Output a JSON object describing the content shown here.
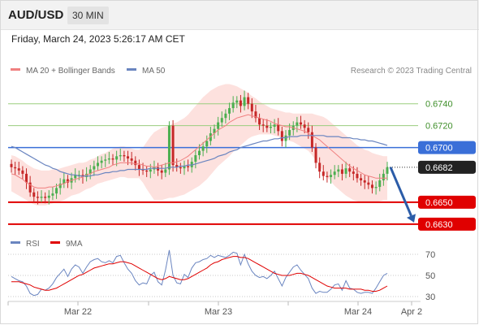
{
  "header": {
    "symbol": "AUD/USD",
    "timeframe": "30 MIN"
  },
  "timestamp": "Friday, March 24, 2023 5:26:17 AM CET",
  "legend": {
    "ma20": "MA 20 + Bollinger Bands",
    "ma50": "MA 50",
    "copyright": "Research © 2023 Trading Central"
  },
  "rsi_legend": {
    "rsi": "RSI",
    "ma9": "9MA"
  },
  "colors": {
    "bullish": "#4caf50",
    "bearish": "#c62828",
    "ma20": "#f08080",
    "ma50": "#6a85c0",
    "bollinger_fill": "#fde1de",
    "resistance": "#9acd7e",
    "pivot": "#3a6fd8",
    "support": "#e00000",
    "last_price": "#222222",
    "arrow": "#2b5ca8",
    "rsi_line": "#6a85c0",
    "rsi_ma": "#e00000"
  },
  "chart_data": [
    {
      "type": "candlestick",
      "title": "AUD/USD 30 MIN",
      "x_ticks": [
        "Mar 22",
        "Mar 23",
        "Mar 24",
        "Apr 2"
      ],
      "y_range": [
        0.6618,
        0.6768
      ],
      "horizontal_levels": [
        {
          "value": 0.674,
          "label": "0.6740",
          "kind": "resistance"
        },
        {
          "value": 0.672,
          "label": "0.6720",
          "kind": "resistance"
        },
        {
          "value": 0.67,
          "label": "0.6700",
          "kind": "pivot"
        },
        {
          "value": 0.6682,
          "label": "0.6682",
          "kind": "last"
        },
        {
          "value": 0.665,
          "label": "0.6650",
          "kind": "support"
        },
        {
          "value": 0.663,
          "label": "0.6630",
          "kind": "support"
        }
      ],
      "close": [
        0.6682,
        0.6681,
        0.6679,
        0.6676,
        0.6668,
        0.6659,
        0.6655,
        0.6654,
        0.6655,
        0.6654,
        0.6656,
        0.6658,
        0.6663,
        0.6667,
        0.6671,
        0.6668,
        0.6672,
        0.6675,
        0.6675,
        0.6673,
        0.6676,
        0.668,
        0.6683,
        0.6686,
        0.6688,
        0.6689,
        0.669,
        0.6689,
        0.6692,
        0.6693,
        0.6692,
        0.669,
        0.6688,
        0.6684,
        0.668,
        0.6679,
        0.6678,
        0.668,
        0.6682,
        0.6679,
        0.6677,
        0.668,
        0.672,
        0.6684,
        0.6682,
        0.6681,
        0.6683,
        0.6682,
        0.6687,
        0.6693,
        0.6697,
        0.6701,
        0.6706,
        0.6713,
        0.6717,
        0.6723,
        0.6727,
        0.6731,
        0.6736,
        0.6741,
        0.6743,
        0.6738,
        0.6746,
        0.674,
        0.6733,
        0.6727,
        0.6721,
        0.672,
        0.6718,
        0.6719,
        0.6721,
        0.6715,
        0.6706,
        0.6711,
        0.6716,
        0.672,
        0.6723,
        0.6721,
        0.6718,
        0.6714,
        0.67,
        0.6686,
        0.6678,
        0.6674,
        0.6673,
        0.6675,
        0.6678,
        0.668,
        0.6676,
        0.6681,
        0.6678,
        0.6676,
        0.6672,
        0.667,
        0.6668,
        0.6666,
        0.6663,
        0.6664,
        0.667,
        0.6676,
        0.6682
      ],
      "ma20": [
        0.6676,
        0.6675,
        0.6673,
        0.6671,
        0.6668,
        0.6666,
        0.6664,
        0.6663,
        0.6663,
        0.6663,
        0.6664,
        0.6664,
        0.6665,
        0.6666,
        0.6667,
        0.6669,
        0.667,
        0.6671,
        0.6672,
        0.6673,
        0.6675,
        0.6676,
        0.6678,
        0.6679,
        0.668,
        0.6681,
        0.6682,
        0.6684,
        0.6685,
        0.6686,
        0.6686,
        0.6686,
        0.6686,
        0.6685,
        0.6685,
        0.6684,
        0.6683,
        0.6683,
        0.6682,
        0.6683,
        0.6684,
        0.6685,
        0.6686,
        0.6686,
        0.6687,
        0.6688,
        0.669,
        0.6692,
        0.6695,
        0.6698,
        0.6701,
        0.6704,
        0.6707,
        0.671,
        0.6713,
        0.6716,
        0.6718,
        0.672,
        0.6723,
        0.6725,
        0.6727,
        0.6728,
        0.6729,
        0.673,
        0.6729,
        0.6728,
        0.6727,
        0.6726,
        0.6725,
        0.6724,
        0.6722,
        0.6721,
        0.672,
        0.6719,
        0.6719,
        0.6718,
        0.6717,
        0.6716,
        0.6715,
        0.6713,
        0.6711,
        0.6709,
        0.6707,
        0.6704,
        0.6701,
        0.6698,
        0.6695,
        0.6692,
        0.6689,
        0.6686,
        0.6683,
        0.6681,
        0.6679,
        0.6677,
        0.6675,
        0.6674,
        0.6673,
        0.6672,
        0.6672,
        0.6672,
        0.6672
      ],
      "bb_upper": [
        0.6693,
        0.6692,
        0.669,
        0.6688,
        0.6685,
        0.6683,
        0.6681,
        0.668,
        0.6679,
        0.6679,
        0.6679,
        0.668,
        0.668,
        0.6681,
        0.6682,
        0.6683,
        0.6684,
        0.6685,
        0.6686,
        0.6686,
        0.6687,
        0.6689,
        0.669,
        0.6692,
        0.6694,
        0.6695,
        0.6697,
        0.6699,
        0.67,
        0.6701,
        0.6701,
        0.67,
        0.6699,
        0.6698,
        0.6698,
        0.67,
        0.6705,
        0.671,
        0.6714,
        0.6716,
        0.6718,
        0.6719,
        0.672,
        0.6722,
        0.6723,
        0.6725,
        0.6727,
        0.673,
        0.6734,
        0.6738,
        0.6742,
        0.6746,
        0.6749,
        0.6752,
        0.6754,
        0.6756,
        0.6757,
        0.6758,
        0.6758,
        0.6757,
        0.6756,
        0.6754,
        0.6752,
        0.675,
        0.6747,
        0.6745,
        0.6742,
        0.674,
        0.6738,
        0.6736,
        0.6735,
        0.6734,
        0.6733,
        0.6732,
        0.6732,
        0.6731,
        0.6731,
        0.6731,
        0.6731,
        0.6731,
        0.6731,
        0.673,
        0.6729,
        0.6728,
        0.6726,
        0.6723,
        0.672,
        0.6717,
        0.6714,
        0.6711,
        0.6708,
        0.6705,
        0.6702,
        0.67,
        0.6698,
        0.6697,
        0.6695,
        0.6694,
        0.6693,
        0.6692,
        0.6692
      ],
      "bb_lower": [
        0.666,
        0.6658,
        0.6656,
        0.6654,
        0.6652,
        0.665,
        0.6648,
        0.6647,
        0.6647,
        0.6647,
        0.6648,
        0.6649,
        0.665,
        0.6651,
        0.6652,
        0.6654,
        0.6656,
        0.6657,
        0.6658,
        0.666,
        0.6662,
        0.6663,
        0.6665,
        0.6667,
        0.6668,
        0.6669,
        0.667,
        0.6671,
        0.6672,
        0.6673,
        0.6673,
        0.6672,
        0.6672,
        0.6672,
        0.6672,
        0.6668,
        0.6662,
        0.6657,
        0.6652,
        0.6652,
        0.6652,
        0.6653,
        0.6654,
        0.6654,
        0.6655,
        0.6656,
        0.6657,
        0.6659,
        0.6661,
        0.6663,
        0.6665,
        0.6668,
        0.6671,
        0.6675,
        0.6679,
        0.6683,
        0.6686,
        0.6689,
        0.6692,
        0.6696,
        0.6699,
        0.6702,
        0.6705,
        0.6708,
        0.671,
        0.6711,
        0.6712,
        0.6712,
        0.6712,
        0.6712,
        0.6711,
        0.671,
        0.6709,
        0.6708,
        0.6706,
        0.6705,
        0.6703,
        0.6701,
        0.6699,
        0.6697,
        0.6693,
        0.6688,
        0.6683,
        0.6678,
        0.6673,
        0.6669,
        0.6665,
        0.6662,
        0.6659,
        0.6656,
        0.6654,
        0.6652,
        0.6651,
        0.665,
        0.665,
        0.665,
        0.665,
        0.665,
        0.6651,
        0.6652,
        0.6652
      ],
      "ma50": [
        0.6701,
        0.67,
        0.6698,
        0.6696,
        0.6694,
        0.6692,
        0.669,
        0.6688,
        0.6686,
        0.6684,
        0.6683,
        0.6681,
        0.668,
        0.6678,
        0.6677,
        0.6676,
        0.6675,
        0.6675,
        0.6674,
        0.6674,
        0.6674,
        0.6674,
        0.6675,
        0.6675,
        0.6676,
        0.6677,
        0.6677,
        0.6678,
        0.6678,
        0.6679,
        0.6679,
        0.668,
        0.668,
        0.668,
        0.668,
        0.668,
        0.668,
        0.6681,
        0.6681,
        0.6681,
        0.6681,
        0.6681,
        0.6682,
        0.6682,
        0.6682,
        0.6683,
        0.6683,
        0.6684,
        0.6684,
        0.6685,
        0.6686,
        0.6687,
        0.6688,
        0.6689,
        0.669,
        0.6692,
        0.6693,
        0.6694,
        0.6696,
        0.6697,
        0.6698,
        0.67,
        0.6701,
        0.6702,
        0.6703,
        0.6704,
        0.6705,
        0.6706,
        0.6706,
        0.6707,
        0.6708,
        0.6708,
        0.6709,
        0.6709,
        0.671,
        0.671,
        0.671,
        0.6711,
        0.6711,
        0.6711,
        0.6711,
        0.6711,
        0.6711,
        0.6711,
        0.671,
        0.671,
        0.671,
        0.671,
        0.6709,
        0.6709,
        0.6709,
        0.6708,
        0.6708,
        0.6707,
        0.6707,
        0.6706,
        0.6706,
        0.6705,
        0.6704,
        0.6703,
        0.6702
      ],
      "projection": {
        "from_value": 0.6682,
        "to_value": 0.663
      }
    },
    {
      "type": "line",
      "title": "RSI",
      "y_range": [
        20,
        80
      ],
      "y_ticks": [
        70,
        50,
        30
      ],
      "series": [
        {
          "name": "RSI",
          "values": [
            49,
            47,
            45,
            44,
            40,
            33,
            31,
            32,
            37,
            36,
            38,
            42,
            48,
            52,
            56,
            49,
            56,
            60,
            58,
            52,
            58,
            63,
            65,
            66,
            63,
            62,
            64,
            62,
            68,
            69,
            62,
            56,
            52,
            45,
            41,
            43,
            42,
            50,
            53,
            44,
            41,
            55,
            74,
            50,
            43,
            42,
            51,
            48,
            57,
            62,
            63,
            65,
            66,
            69,
            67,
            69,
            68,
            67,
            69,
            72,
            71,
            60,
            70,
            61,
            54,
            50,
            48,
            49,
            47,
            50,
            54,
            47,
            40,
            48,
            53,
            58,
            60,
            55,
            51,
            47,
            38,
            33,
            35,
            34,
            34,
            37,
            41,
            42,
            36,
            45,
            38,
            37,
            34,
            33,
            34,
            34,
            33,
            38,
            44,
            50,
            52
          ]
        },
        {
          "name": "9MA",
          "values": [
            44,
            44,
            44,
            43,
            42,
            41,
            39,
            38,
            37,
            36,
            36,
            37,
            38,
            40,
            42,
            44,
            46,
            48,
            50,
            51,
            53,
            55,
            57,
            58,
            59,
            60,
            61,
            61,
            62,
            63,
            63,
            62,
            61,
            59,
            57,
            55,
            53,
            51,
            49,
            47,
            46,
            47,
            49,
            48,
            47,
            46,
            46,
            47,
            49,
            51,
            53,
            55,
            57,
            60,
            62,
            63,
            65,
            66,
            67,
            68,
            68,
            67,
            67,
            66,
            64,
            62,
            60,
            58,
            56,
            54,
            52,
            51,
            50,
            50,
            50,
            51,
            52,
            52,
            51,
            50,
            48,
            46,
            44,
            42,
            40,
            39,
            38,
            38,
            38,
            38,
            37,
            37,
            37,
            37,
            36,
            36,
            35,
            35,
            36,
            38,
            40
          ]
        }
      ]
    }
  ]
}
